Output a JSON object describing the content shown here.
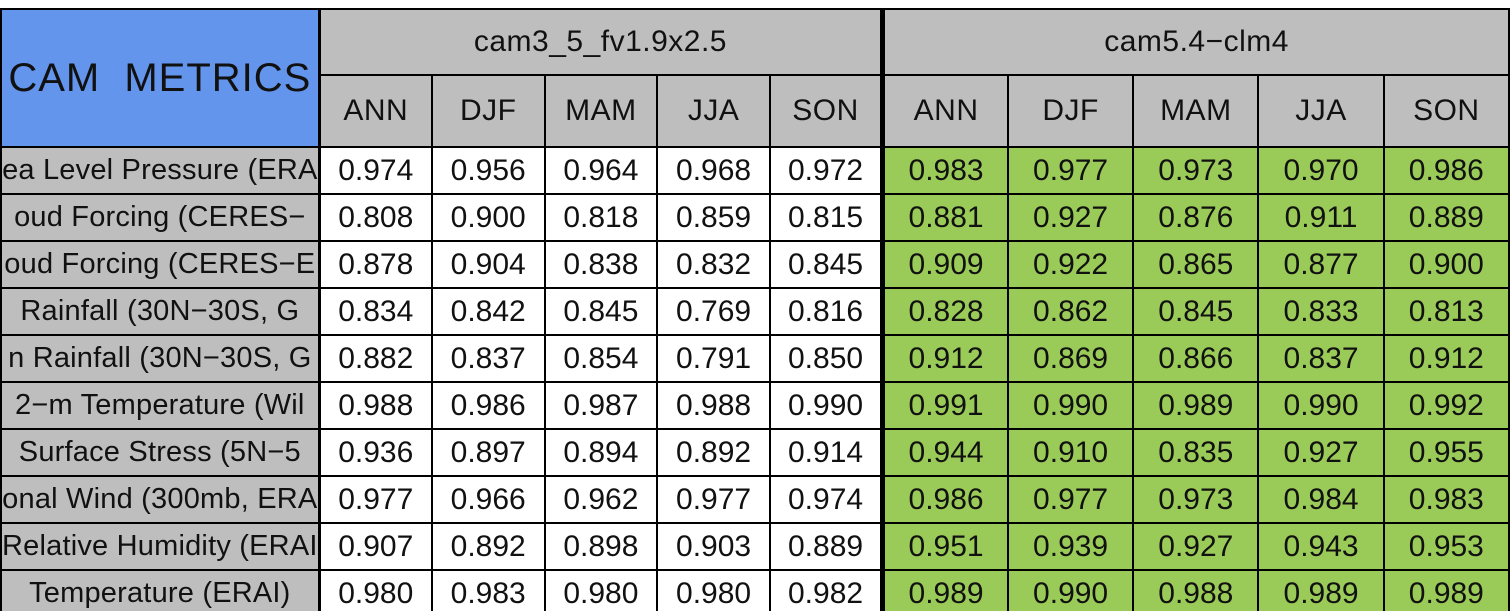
{
  "chart_data": {
    "type": "table",
    "title": "CAM METRICS",
    "column_groups": [
      "cam3_5_fv1.9x2.5",
      "cam5.4−clm4"
    ],
    "seasons": [
      "ANN",
      "DJF",
      "MAM",
      "JJA",
      "SON"
    ],
    "rows": [
      {
        "label": "ea Level Pressure (ERA",
        "cam3_5": [
          "0.974",
          "0.956",
          "0.964",
          "0.968",
          "0.972"
        ],
        "cam5_4": [
          "0.983",
          "0.977",
          "0.973",
          "0.970",
          "0.986"
        ],
        "status": [
          "better",
          "better",
          "better",
          "better",
          "better"
        ]
      },
      {
        "label": "oud Forcing (CERES−",
        "cam3_5": [
          "0.808",
          "0.900",
          "0.818",
          "0.859",
          "0.815"
        ],
        "cam5_4": [
          "0.881",
          "0.927",
          "0.876",
          "0.911",
          "0.889"
        ],
        "status": [
          "better",
          "better",
          "better",
          "better",
          "better"
        ]
      },
      {
        "label": "oud Forcing (CERES−E",
        "cam3_5": [
          "0.878",
          "0.904",
          "0.838",
          "0.832",
          "0.845"
        ],
        "cam5_4": [
          "0.909",
          "0.922",
          "0.865",
          "0.877",
          "0.900"
        ],
        "status": [
          "better",
          "better",
          "better",
          "better",
          "better"
        ]
      },
      {
        "label": "Rainfall (30N−30S, G",
        "cam3_5": [
          "0.834",
          "0.842",
          "0.845",
          "0.769",
          "0.816"
        ],
        "cam5_4": [
          "0.828",
          "0.862",
          "0.845",
          "0.833",
          "0.813"
        ],
        "status": [
          "worse",
          "better",
          "better",
          "better",
          "worse"
        ]
      },
      {
        "label": "n Rainfall (30N−30S, G",
        "cam3_5": [
          "0.882",
          "0.837",
          "0.854",
          "0.791",
          "0.850"
        ],
        "cam5_4": [
          "0.912",
          "0.869",
          "0.866",
          "0.837",
          "0.912"
        ],
        "status": [
          "better",
          "better",
          "better",
          "better",
          "better"
        ]
      },
      {
        "label": "2−m Temperature (Wil",
        "cam3_5": [
          "0.988",
          "0.986",
          "0.987",
          "0.988",
          "0.990"
        ],
        "cam5_4": [
          "0.991",
          "0.990",
          "0.989",
          "0.990",
          "0.992"
        ],
        "status": [
          "better",
          "better",
          "better",
          "better",
          "better"
        ]
      },
      {
        "label": "Surface Stress (5N−5",
        "cam3_5": [
          "0.936",
          "0.897",
          "0.894",
          "0.892",
          "0.914"
        ],
        "cam5_4": [
          "0.944",
          "0.910",
          "0.835",
          "0.927",
          "0.955"
        ],
        "status": [
          "better",
          "better",
          "worse",
          "better",
          "better"
        ]
      },
      {
        "label": "onal Wind (300mb, ERA",
        "cam3_5": [
          "0.977",
          "0.966",
          "0.962",
          "0.977",
          "0.974"
        ],
        "cam5_4": [
          "0.986",
          "0.977",
          "0.973",
          "0.984",
          "0.983"
        ],
        "status": [
          "better",
          "better",
          "better",
          "better",
          "better"
        ]
      },
      {
        "label": "Relative Humidity (ERAI",
        "cam3_5": [
          "0.907",
          "0.892",
          "0.898",
          "0.903",
          "0.889"
        ],
        "cam5_4": [
          "0.951",
          "0.939",
          "0.927",
          "0.943",
          "0.953"
        ],
        "status": [
          "better",
          "better",
          "better",
          "better",
          "better"
        ]
      },
      {
        "label": "Temperature (ERAI)",
        "cam3_5": [
          "0.980",
          "0.983",
          "0.980",
          "0.980",
          "0.982"
        ],
        "cam5_4": [
          "0.989",
          "0.990",
          "0.988",
          "0.989",
          "0.989"
        ],
        "status": [
          "better",
          "better",
          "better",
          "better",
          "better"
        ]
      }
    ]
  },
  "colors": {
    "title_bg": "#6495ED",
    "header_bg": "#BEBEBE",
    "row_label_bg": "#BEBEBE",
    "cam3_5_cell_bg": "#FFFFFF",
    "better_cell_bg": "#9ACB58",
    "worse_cell_bg": "#FA6767",
    "border": "#000000",
    "page_bg": "#FFFFFF"
  }
}
